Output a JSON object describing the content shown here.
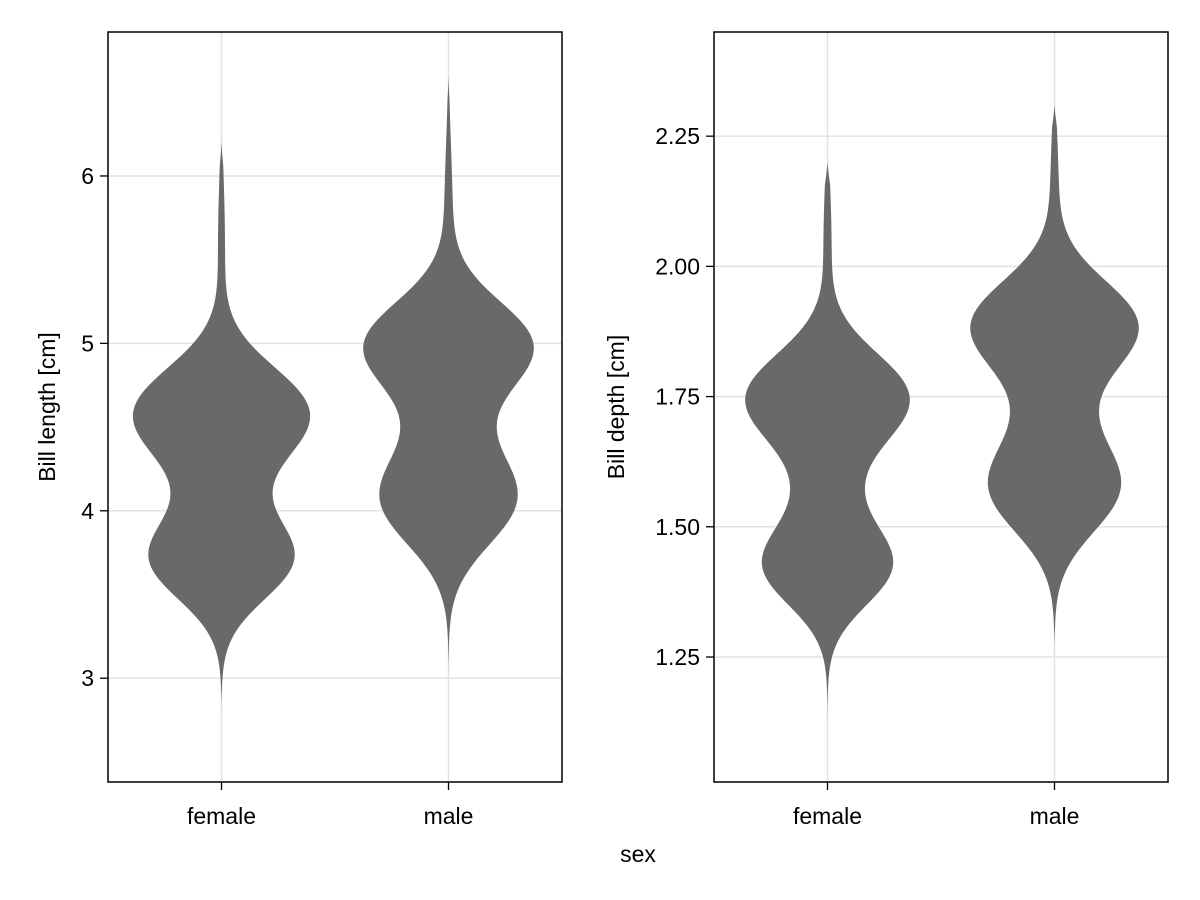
{
  "chart_data": [
    {
      "type": "violin",
      "title": "",
      "xlabel": "",
      "ylabel": "Bill length [cm]",
      "categories": [
        "female",
        "male"
      ],
      "ylim": [
        2.38,
        6.86
      ],
      "yticks": [
        3,
        4,
        5,
        6
      ],
      "grid": true,
      "color": "#666666",
      "violins": [
        {
          "category": "female",
          "range": [
            2.8,
            6.2
          ],
          "peaks": [
            {
              "y": 3.7,
              "width": 0.64,
              "spread": 0.24
            },
            {
              "y": 4.6,
              "width": 0.8,
              "spread": 0.27
            },
            {
              "y": 4.15,
              "width": 0.22,
              "spread": 0.35
            },
            {
              "y": 5.6,
              "width": 0.035,
              "spread": 0.4
            }
          ]
        },
        {
          "category": "male",
          "range": [
            3.0,
            6.6
          ],
          "peaks": [
            {
              "y": 4.05,
              "width": 0.6,
              "spread": 0.27
            },
            {
              "y": 5.0,
              "width": 0.78,
              "spread": 0.26
            },
            {
              "y": 4.5,
              "width": 0.22,
              "spread": 0.35
            },
            {
              "y": 5.8,
              "width": 0.04,
              "spread": 0.4
            }
          ]
        }
      ]
    },
    {
      "type": "violin",
      "title": "",
      "xlabel": "",
      "ylabel": "Bill depth [cm]",
      "categories": [
        "female",
        "male"
      ],
      "ylim": [
        1.01,
        2.45
      ],
      "yticks": [
        "1.25",
        "1.50",
        "1.75",
        "2.00",
        "2.25"
      ],
      "grid": true,
      "color": "#666666",
      "violins": [
        {
          "category": "female",
          "range": [
            1.12,
            2.2
          ],
          "peaks": [
            {
              "y": 1.42,
              "width": 0.58,
              "spread": 0.075
            },
            {
              "y": 1.75,
              "width": 0.8,
              "spread": 0.085
            },
            {
              "y": 1.56,
              "width": 0.22,
              "spread": 0.1
            },
            {
              "y": 2.05,
              "width": 0.04,
              "spread": 0.12
            }
          ]
        },
        {
          "category": "male",
          "range": [
            1.26,
            2.31
          ],
          "peaks": [
            {
              "y": 1.57,
              "width": 0.6,
              "spread": 0.085
            },
            {
              "y": 1.89,
              "width": 0.8,
              "spread": 0.085
            },
            {
              "y": 1.72,
              "width": 0.22,
              "spread": 0.1
            },
            {
              "y": 2.15,
              "width": 0.04,
              "spread": 0.12
            }
          ]
        }
      ]
    }
  ],
  "shared_xlabel": "sex"
}
